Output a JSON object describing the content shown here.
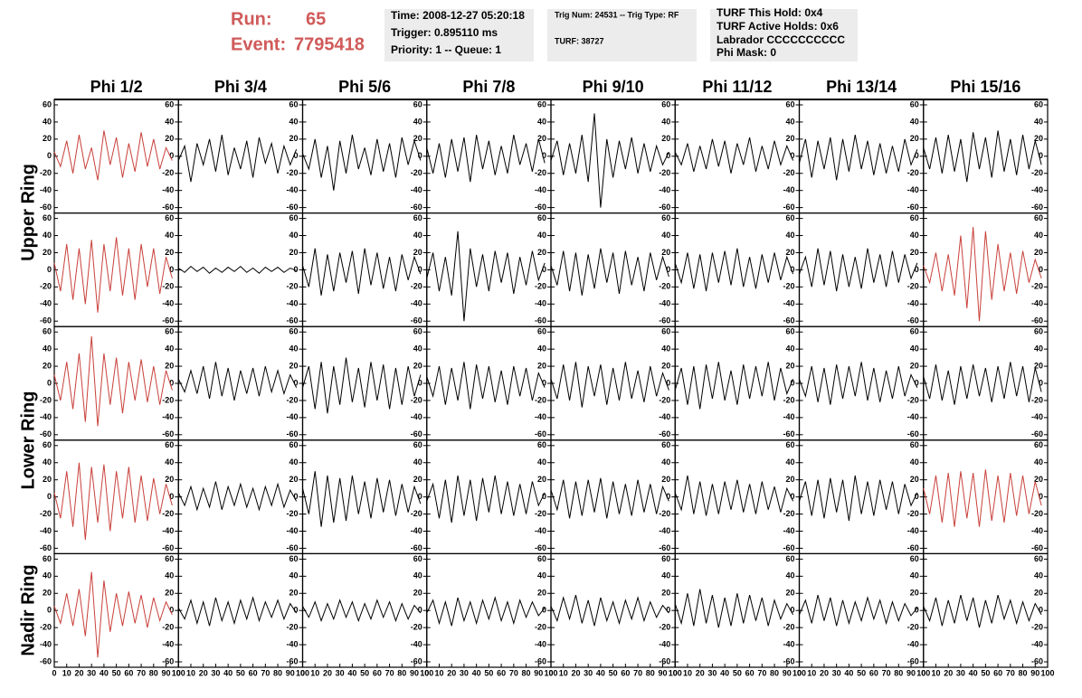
{
  "header": {
    "run_label": "Run:",
    "run": "65",
    "event_label": "Event:",
    "event": "7795418",
    "box1": [
      "Time: 2008-12-27 05:20:18",
      "Trigger: 0.895110 ms",
      "Priority: 1 -- Queue: 1"
    ],
    "box2": [
      "Trig Num: 24531 -- Trig Type: RF",
      "TURF: 38727"
    ],
    "box3": [
      "TURF This Hold: 0x4",
      "TURF Active Holds: 0x6",
      "Labrador CCCCCCCCCC",
      "Phi Mask: 0"
    ]
  },
  "chart_data": {
    "type": "line",
    "columns": [
      "Phi 1/2",
      "Phi 3/4",
      "Phi 5/6",
      "Phi 7/8",
      "Phi 9/10",
      "Phi 11/12",
      "Phi 13/14",
      "Phi 15/16"
    ],
    "row_labels": [
      "Upper Ring",
      "Lower Ring",
      "Nadir Ring"
    ],
    "xlim": [
      0,
      100
    ],
    "xticks": [
      0,
      10,
      20,
      30,
      40,
      50,
      60,
      70,
      80,
      90,
      100
    ],
    "ylim": [
      -60,
      60
    ],
    "yticks": [
      -60,
      -40,
      -20,
      0,
      20,
      40,
      60
    ],
    "x": [
      0,
      5,
      10,
      15,
      20,
      25,
      30,
      35,
      40,
      45,
      50,
      55,
      60,
      65,
      70,
      75,
      80,
      85,
      90,
      95
    ],
    "waveforms": [
      [
        {
          "color": "#c8403a",
          "values": [
            5,
            -12,
            18,
            -20,
            25,
            -15,
            10,
            -28,
            30,
            -10,
            22,
            -25,
            15,
            -18,
            28,
            -12,
            20,
            -15,
            10,
            -5
          ]
        },
        {
          "color": "#000000",
          "values": [
            -5,
            12,
            -30,
            15,
            -10,
            20,
            -18,
            25,
            -22,
            10,
            -15,
            18,
            -25,
            22,
            -8,
            15,
            -20,
            12,
            -10,
            8
          ]
        },
        {
          "color": "#000000",
          "values": [
            3,
            -15,
            20,
            -25,
            12,
            -40,
            18,
            -20,
            25,
            -15,
            10,
            -22,
            20,
            -18,
            15,
            -25,
            22,
            -10,
            18,
            -5
          ]
        },
        {
          "color": "#000000",
          "values": [
            10,
            -20,
            15,
            -25,
            20,
            -18,
            22,
            -30,
            25,
            -15,
            18,
            -22,
            12,
            -20,
            25,
            -10,
            15,
            -18,
            20,
            -8
          ]
        },
        {
          "color": "#000000",
          "values": [
            -5,
            18,
            -22,
            15,
            -20,
            25,
            -30,
            50,
            -60,
            20,
            -25,
            18,
            -15,
            22,
            -20,
            15,
            -18,
            12,
            -10,
            5
          ]
        },
        {
          "color": "#000000",
          "values": [
            5,
            -10,
            15,
            -18,
            12,
            -15,
            20,
            -12,
            18,
            -20,
            15,
            -10,
            22,
            -18,
            12,
            -15,
            18,
            -10,
            12,
            -5
          ]
        },
        {
          "color": "#000000",
          "values": [
            -8,
            20,
            -25,
            18,
            -15,
            22,
            -28,
            20,
            -18,
            25,
            -15,
            18,
            -22,
            15,
            -20,
            12,
            -18,
            20,
            -10,
            8
          ]
        },
        {
          "color": "#000000",
          "values": [
            10,
            -15,
            22,
            -20,
            25,
            -18,
            20,
            -30,
            28,
            -15,
            22,
            -25,
            30,
            -18,
            20,
            -22,
            25,
            -15,
            18,
            -10
          ]
        }
      ],
      [
        {
          "color": "#c8403a",
          "values": [
            8,
            -25,
            30,
            -35,
            25,
            -40,
            35,
            -50,
            30,
            -25,
            38,
            -30,
            25,
            -35,
            30,
            -20,
            25,
            -28,
            15,
            -10
          ]
        },
        {
          "color": "#000000",
          "values": [
            2,
            -3,
            4,
            -2,
            3,
            -4,
            2,
            -3,
            3,
            -2,
            4,
            -3,
            2,
            -4,
            3,
            -2,
            3,
            -3,
            2,
            -1
          ]
        },
        {
          "color": "#000000",
          "values": [
            5,
            -20,
            25,
            -30,
            18,
            -25,
            20,
            -15,
            22,
            -28,
            25,
            -18,
            20,
            -22,
            15,
            -25,
            18,
            -12,
            15,
            -5
          ]
        },
        {
          "color": "#000000",
          "values": [
            -10,
            20,
            -25,
            15,
            -30,
            45,
            -60,
            25,
            -20,
            18,
            -25,
            22,
            -15,
            20,
            -28,
            15,
            -18,
            22,
            -12,
            8
          ]
        },
        {
          "color": "#000000",
          "values": [
            5,
            -18,
            22,
            -25,
            20,
            -30,
            18,
            -22,
            25,
            -15,
            20,
            -28,
            22,
            -18,
            15,
            -25,
            20,
            -12,
            15,
            -8
          ]
        },
        {
          "color": "#000000",
          "values": [
            8,
            -15,
            20,
            -22,
            18,
            -25,
            20,
            -15,
            22,
            -18,
            25,
            -20,
            15,
            -22,
            18,
            -15,
            20,
            -12,
            15,
            -5
          ]
        },
        {
          "color": "#000000",
          "values": [
            -5,
            15,
            -20,
            25,
            -18,
            22,
            -25,
            18,
            -20,
            15,
            -22,
            25,
            -15,
            18,
            -20,
            22,
            -15,
            18,
            -10,
            8
          ]
        },
        {
          "color": "#c8403a",
          "values": [
            5,
            -15,
            20,
            -25,
            18,
            -30,
            40,
            -45,
            50,
            -60,
            45,
            -35,
            30,
            -25,
            20,
            -28,
            22,
            -15,
            12,
            -10
          ]
        }
      ],
      [
        {
          "color": "#c8403a",
          "values": [
            10,
            -20,
            25,
            -30,
            35,
            -45,
            55,
            -50,
            35,
            -25,
            30,
            -35,
            25,
            -20,
            28,
            -22,
            20,
            -25,
            15,
            -8
          ]
        },
        {
          "color": "#000000",
          "values": [
            5,
            -10,
            15,
            -12,
            20,
            -18,
            25,
            -15,
            18,
            -20,
            15,
            -12,
            18,
            -15,
            20,
            -10,
            15,
            -12,
            10,
            -5
          ]
        },
        {
          "color": "#000000",
          "values": [
            -5,
            20,
            -30,
            25,
            -35,
            20,
            -25,
            30,
            -22,
            18,
            -28,
            25,
            -20,
            22,
            -30,
            18,
            -25,
            20,
            -15,
            10
          ]
        },
        {
          "color": "#000000",
          "values": [
            8,
            -15,
            20,
            -25,
            18,
            -20,
            25,
            -30,
            22,
            -18,
            20,
            -22,
            15,
            -25,
            20,
            -15,
            18,
            -20,
            12,
            -5
          ]
        },
        {
          "color": "#000000",
          "values": [
            5,
            -18,
            22,
            -20,
            25,
            -28,
            20,
            -15,
            22,
            -25,
            18,
            -20,
            25,
            -18,
            15,
            -22,
            20,
            -15,
            12,
            -8
          ]
        },
        {
          "color": "#000000",
          "values": [
            -8,
            18,
            -25,
            20,
            -30,
            22,
            -18,
            25,
            -20,
            15,
            -25,
            22,
            -18,
            20,
            -15,
            25,
            -20,
            18,
            -12,
            5
          ]
        },
        {
          "color": "#000000",
          "values": [
            5,
            -15,
            20,
            -22,
            18,
            -25,
            22,
            -18,
            20,
            -15,
            25,
            -20,
            18,
            -22,
            15,
            -18,
            20,
            -15,
            10,
            -5
          ]
        },
        {
          "color": "#000000",
          "values": [
            8,
            -18,
            22,
            -20,
            15,
            -25,
            20,
            -18,
            22,
            -15,
            18,
            -22,
            20,
            -18,
            25,
            -15,
            20,
            -22,
            18,
            -10
          ]
        }
      ],
      [
        {
          "color": "#c8403a",
          "values": [
            5,
            -25,
            30,
            -35,
            40,
            -50,
            35,
            -30,
            38,
            -40,
            30,
            -25,
            35,
            -30,
            25,
            -28,
            22,
            -20,
            15,
            -10
          ]
        },
        {
          "color": "#000000",
          "values": [
            5,
            -10,
            12,
            -15,
            10,
            -12,
            18,
            -15,
            12,
            -10,
            15,
            -12,
            10,
            -15,
            12,
            -10,
            15,
            -12,
            8,
            -5
          ]
        },
        {
          "color": "#000000",
          "values": [
            10,
            -20,
            30,
            -35,
            25,
            -30,
            22,
            -28,
            25,
            -20,
            18,
            -25,
            22,
            -18,
            20,
            -22,
            15,
            -18,
            12,
            -8
          ]
        },
        {
          "color": "#000000",
          "values": [
            -5,
            15,
            -25,
            20,
            -30,
            25,
            -22,
            20,
            -28,
            22,
            -18,
            25,
            -20,
            18,
            -22,
            15,
            -20,
            18,
            -10,
            5
          ]
        },
        {
          "color": "#000000",
          "values": [
            8,
            -15,
            20,
            -25,
            18,
            -22,
            20,
            -18,
            22,
            -25,
            18,
            -20,
            15,
            -22,
            20,
            -18,
            15,
            -20,
            12,
            -5
          ]
        },
        {
          "color": "#000000",
          "values": [
            5,
            -15,
            25,
            -20,
            18,
            -22,
            15,
            -20,
            18,
            -15,
            20,
            -18,
            15,
            -20,
            18,
            -15,
            12,
            -18,
            10,
            -5
          ]
        },
        {
          "color": "#000000",
          "values": [
            -5,
            18,
            -22,
            20,
            -25,
            22,
            -18,
            20,
            -28,
            25,
            -20,
            18,
            -22,
            20,
            -15,
            18,
            -20,
            15,
            -10,
            5
          ]
        },
        {
          "color": "#c8403a",
          "values": [
            10,
            -20,
            25,
            -30,
            28,
            -35,
            30,
            -25,
            28,
            -35,
            32,
            -28,
            25,
            -30,
            28,
            -22,
            25,
            -20,
            18,
            -10
          ]
        }
      ],
      [
        {
          "color": "#c8403a",
          "values": [
            5,
            -15,
            20,
            -18,
            25,
            -30,
            45,
            -55,
            35,
            -25,
            20,
            -18,
            22,
            -15,
            18,
            -20,
            15,
            -12,
            10,
            -5
          ]
        },
        {
          "color": "#000000",
          "values": [
            3,
            -10,
            12,
            -15,
            10,
            -18,
            15,
            -12,
            10,
            -15,
            12,
            -10,
            15,
            -12,
            10,
            -8,
            12,
            -10,
            8,
            -3
          ]
        },
        {
          "color": "#000000",
          "values": [
            5,
            -8,
            10,
            -12,
            8,
            -10,
            12,
            -8,
            10,
            -12,
            8,
            -10,
            12,
            -8,
            10,
            -12,
            8,
            -10,
            6,
            -3
          ]
        },
        {
          "color": "#000000",
          "values": [
            -3,
            12,
            -15,
            10,
            -18,
            15,
            -12,
            10,
            -15,
            12,
            -10,
            15,
            -12,
            10,
            -15,
            12,
            -8,
            10,
            -6,
            3
          ]
        },
        {
          "color": "#000000",
          "values": [
            5,
            -12,
            15,
            -10,
            18,
            -15,
            12,
            -18,
            15,
            -12,
            10,
            -15,
            12,
            -10,
            15,
            -12,
            10,
            -8,
            6,
            -3
          ]
        },
        {
          "color": "#000000",
          "values": [
            8,
            -15,
            20,
            -18,
            25,
            -15,
            18,
            -20,
            15,
            -18,
            20,
            -15,
            18,
            -12,
            15,
            -18,
            12,
            -10,
            8,
            -5
          ]
        },
        {
          "color": "#000000",
          "values": [
            -5,
            12,
            -15,
            18,
            -12,
            15,
            -18,
            12,
            -15,
            10,
            -12,
            15,
            -10,
            12,
            -15,
            10,
            -12,
            8,
            -6,
            3
          ]
        },
        {
          "color": "#000000",
          "values": [
            5,
            -12,
            15,
            -18,
            12,
            -15,
            18,
            -12,
            15,
            -20,
            12,
            -15,
            18,
            -10,
            12,
            -15,
            10,
            -12,
            8,
            -5
          ]
        }
      ]
    ]
  }
}
